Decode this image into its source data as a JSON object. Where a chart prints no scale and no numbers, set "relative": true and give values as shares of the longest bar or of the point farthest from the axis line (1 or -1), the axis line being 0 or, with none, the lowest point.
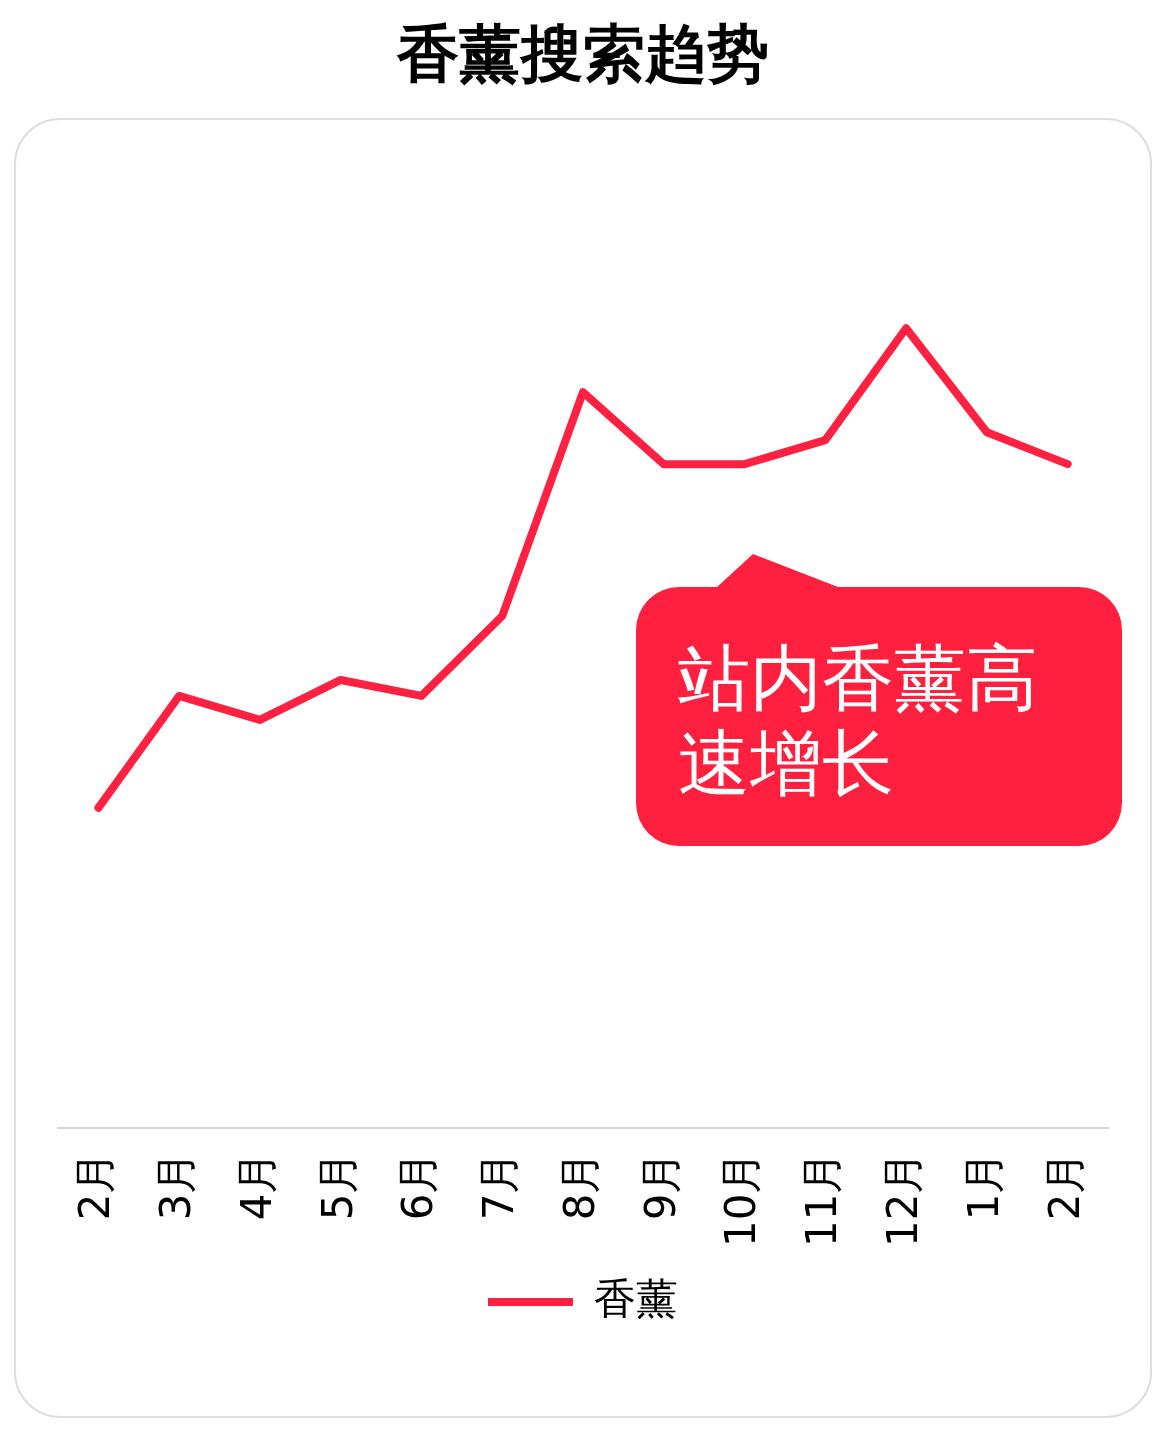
{
  "chart_data": {
    "type": "line",
    "title": "香薰搜索趋势",
    "categories": [
      "2月",
      "3月",
      "4月",
      "5月",
      "6月",
      "7月",
      "8月",
      "9月",
      "10月",
      "11月",
      "12月",
      "1月",
      "2月"
    ],
    "series": [
      {
        "name": "香薰",
        "color": "#ff2142",
        "values": [
          0.4,
          0.54,
          0.51,
          0.56,
          0.54,
          0.64,
          0.92,
          0.83,
          0.83,
          0.86,
          1,
          0.87,
          0.83
        ]
      }
    ],
    "relative": true,
    "legend": "bottom",
    "marker": "none",
    "line_style": "solid",
    "annotations": [
      "站内香薰高速增长"
    ]
  }
}
